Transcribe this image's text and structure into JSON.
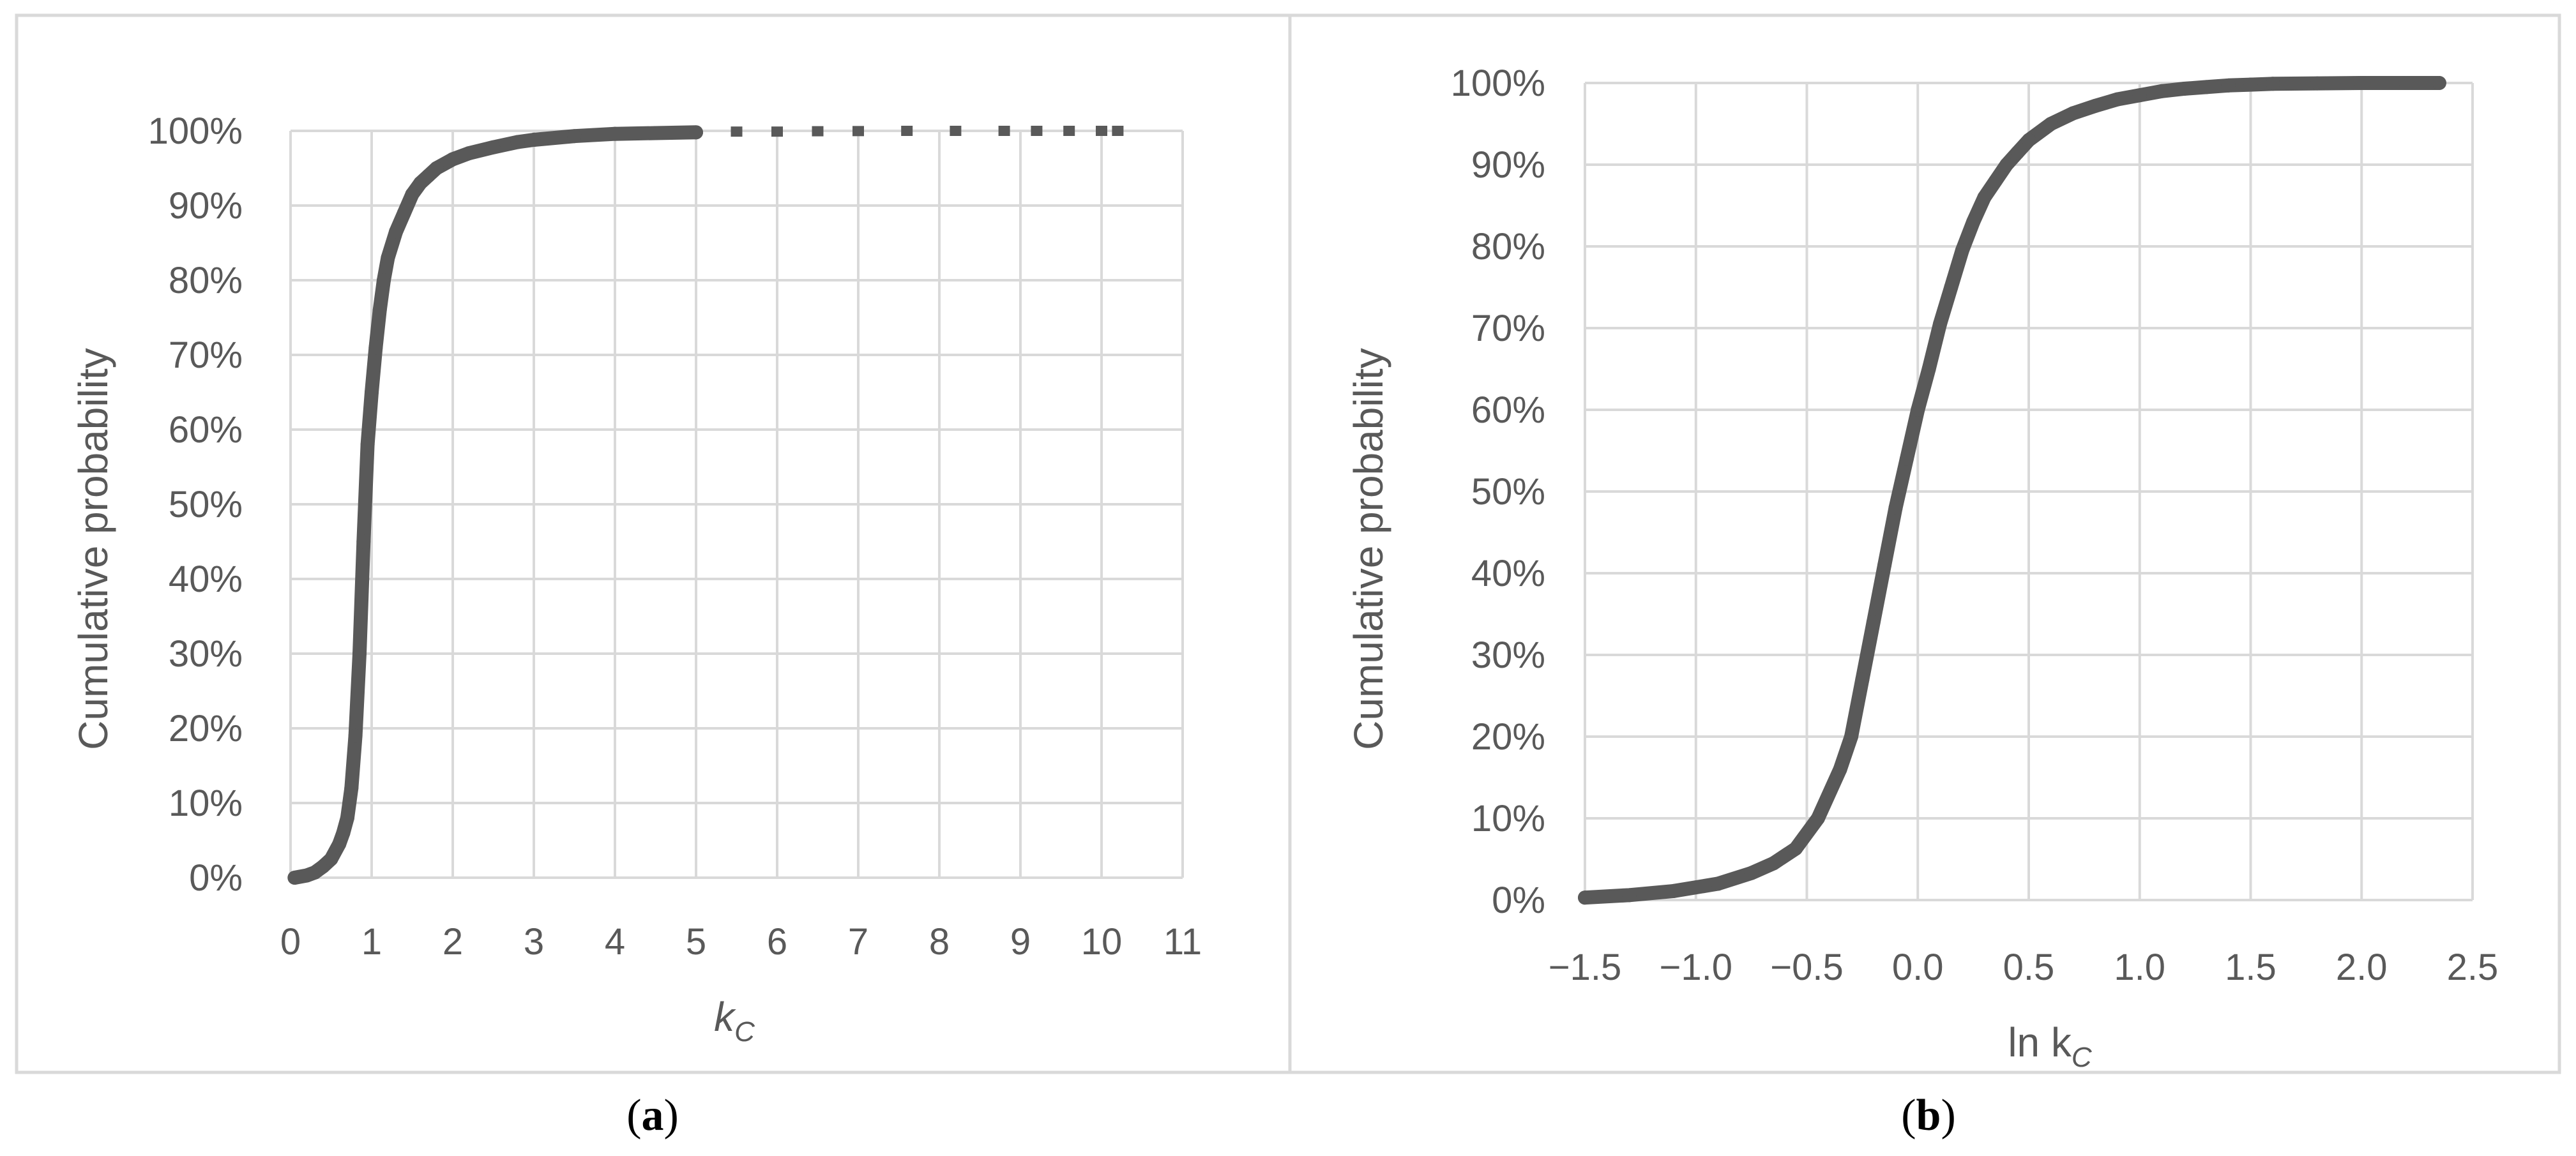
{
  "colors": {
    "series": "#595959",
    "grid": "#d9d9d9",
    "text": "#595959",
    "frame": "#d9d9d9"
  },
  "chart_data": [
    {
      "type": "scatter",
      "panel_label": "a",
      "title": "",
      "xlabel": "k",
      "xlabel_sub": "C",
      "ylabel": "Cumulative probability",
      "xlim": [
        0,
        11
      ],
      "ylim": [
        0,
        1
      ],
      "x_ticks": [
        "0",
        "1",
        "2",
        "3",
        "4",
        "5",
        "6",
        "7",
        "8",
        "9",
        "10",
        "11"
      ],
      "y_ticks": [
        "0%",
        "10%",
        "20%",
        "30%",
        "40%",
        "50%",
        "60%",
        "70%",
        "80%",
        "90%",
        "100%"
      ],
      "grid": true,
      "legend": "none",
      "series": [
        {
          "points": [
            [
              0.05,
              0.0
            ],
            [
              0.2,
              0.003
            ],
            [
              0.3,
              0.007
            ],
            [
              0.4,
              0.015
            ],
            [
              0.5,
              0.025
            ],
            [
              0.6,
              0.045
            ],
            [
              0.65,
              0.06
            ],
            [
              0.7,
              0.08
            ],
            [
              0.75,
              0.12
            ],
            [
              0.8,
              0.19
            ],
            [
              0.85,
              0.3
            ],
            [
              0.9,
              0.45
            ],
            [
              0.95,
              0.58
            ],
            [
              1.0,
              0.65
            ],
            [
              1.05,
              0.71
            ],
            [
              1.1,
              0.76
            ],
            [
              1.15,
              0.8
            ],
            [
              1.2,
              0.83
            ],
            [
              1.3,
              0.865
            ],
            [
              1.4,
              0.89
            ],
            [
              1.5,
              0.915
            ],
            [
              1.6,
              0.93
            ],
            [
              1.7,
              0.94
            ],
            [
              1.8,
              0.95
            ],
            [
              2.0,
              0.962
            ],
            [
              2.2,
              0.97
            ],
            [
              2.5,
              0.978
            ],
            [
              2.8,
              0.985
            ],
            [
              3.0,
              0.988
            ],
            [
              3.5,
              0.993
            ],
            [
              4.0,
              0.996
            ],
            [
              4.5,
              0.997
            ],
            [
              5.0,
              0.998
            ],
            [
              5.5,
              0.999
            ],
            [
              6.0,
              0.999
            ],
            [
              6.5,
              0.9995
            ],
            [
              7.0,
              0.9997
            ],
            [
              7.6,
              1.0
            ],
            [
              8.2,
              1.0
            ],
            [
              8.8,
              1.0
            ],
            [
              9.2,
              1.0
            ],
            [
              9.6,
              1.0
            ],
            [
              10.0,
              1.0
            ],
            [
              10.2,
              1.0
            ]
          ]
        }
      ]
    },
    {
      "type": "scatter",
      "panel_label": "b",
      "title": "",
      "xlabel": "ln k",
      "xlabel_sub": "C",
      "ylabel": "Cumulative probability",
      "xlim": [
        -1.5,
        2.5
      ],
      "ylim": [
        0,
        1
      ],
      "x_ticks": [
        "−1.5",
        "−1.0",
        "−0.5",
        "0.0",
        "0.5",
        "1.0",
        "1.5",
        "2.0",
        "2.5"
      ],
      "y_ticks": [
        "0%",
        "10%",
        "20%",
        "30%",
        "40%",
        "50%",
        "60%",
        "70%",
        "80%",
        "90%",
        "100%"
      ],
      "grid": true,
      "legend": "none",
      "series": [
        {
          "points": [
            [
              -1.5,
              0.003
            ],
            [
              -1.3,
              0.006
            ],
            [
              -1.1,
              0.011
            ],
            [
              -0.9,
              0.02
            ],
            [
              -0.75,
              0.033
            ],
            [
              -0.65,
              0.045
            ],
            [
              -0.55,
              0.063
            ],
            [
              -0.45,
              0.1
            ],
            [
              -0.35,
              0.16
            ],
            [
              -0.3,
              0.2
            ],
            [
              -0.25,
              0.27
            ],
            [
              -0.2,
              0.34
            ],
            [
              -0.15,
              0.41
            ],
            [
              -0.1,
              0.48
            ],
            [
              -0.05,
              0.54
            ],
            [
              0.0,
              0.6
            ],
            [
              0.05,
              0.65
            ],
            [
              0.1,
              0.705
            ],
            [
              0.15,
              0.75
            ],
            [
              0.2,
              0.795
            ],
            [
              0.25,
              0.83
            ],
            [
              0.3,
              0.86
            ],
            [
              0.35,
              0.88
            ],
            [
              0.4,
              0.9
            ],
            [
              0.45,
              0.915
            ],
            [
              0.5,
              0.93
            ],
            [
              0.6,
              0.95
            ],
            [
              0.7,
              0.963
            ],
            [
              0.8,
              0.972
            ],
            [
              0.9,
              0.98
            ],
            [
              1.0,
              0.985
            ],
            [
              1.1,
              0.99
            ],
            [
              1.2,
              0.993
            ],
            [
              1.3,
              0.995
            ],
            [
              1.4,
              0.997
            ],
            [
              1.5,
              0.998
            ],
            [
              1.6,
              0.999
            ],
            [
              1.8,
              0.9995
            ],
            [
              2.0,
              1.0
            ],
            [
              2.2,
              1.0
            ],
            [
              2.35,
              1.0
            ]
          ]
        }
      ]
    }
  ]
}
